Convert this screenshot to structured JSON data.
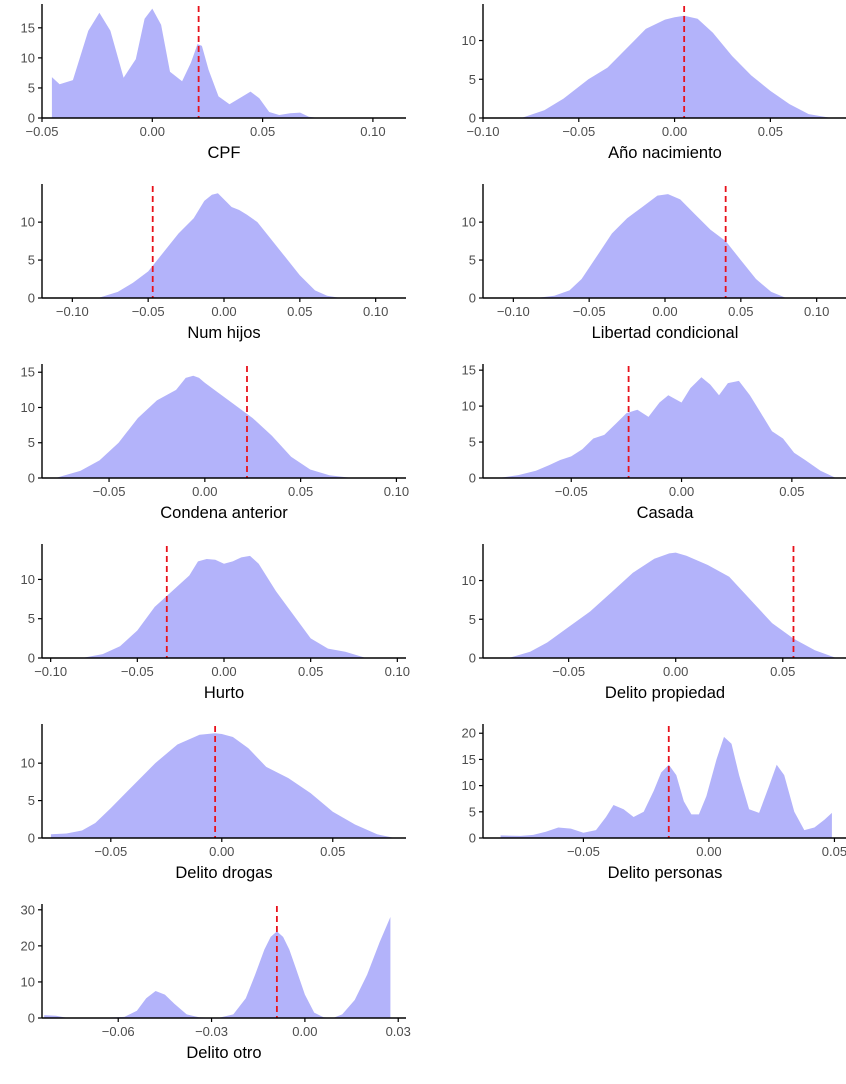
{
  "colors": {
    "density_fill": "#b3b3fa",
    "reference_line": "#e8121b",
    "axis": "#000000"
  },
  "chart_data": [
    {
      "type": "area",
      "title": "",
      "xlabel": "CPF",
      "ylabel": "",
      "grid": false,
      "xlim": [
        -0.05,
        0.115
      ],
      "ylim": [
        0,
        18.3
      ],
      "xticks": [
        "-0.05",
        "0.00",
        "0.05",
        "0.10"
      ],
      "yticks": [
        "0",
        "5",
        "10",
        "15"
      ],
      "reference_x": 0.021,
      "x": [
        -0.0455,
        -0.042,
        -0.036,
        -0.029,
        -0.024,
        -0.019,
        -0.013,
        -0.0075,
        -0.0035,
        0.0,
        0.004,
        0.008,
        0.0135,
        0.0175,
        0.0205,
        0.0225,
        0.0255,
        0.03,
        0.035,
        0.0405,
        0.0445,
        0.0485,
        0.053,
        0.0575,
        0.0625,
        0.067,
        0.071,
        0.0755
      ],
      "y": [
        6.8,
        5.6,
        6.3,
        14.5,
        17.5,
        14.5,
        6.7,
        9.8,
        16.5,
        18.2,
        15.5,
        7.7,
        6.1,
        9.2,
        12.3,
        12.0,
        8.0,
        3.6,
        2.3,
        3.5,
        4.4,
        3.3,
        1.0,
        0.5,
        0.8,
        0.9,
        0.2,
        0.0
      ]
    },
    {
      "type": "area",
      "title": "",
      "xlabel": "Año nacimiento",
      "ylabel": "",
      "grid": false,
      "xlim": [
        -0.1,
        0.09
      ],
      "ylim": [
        0,
        14.2
      ],
      "xticks": [
        "-0.10",
        "-0.05",
        "0.00",
        "0.05"
      ],
      "yticks": [
        "0",
        "5",
        "10"
      ],
      "reference_x": 0.005,
      "x": [
        -0.08,
        -0.068,
        -0.058,
        -0.045,
        -0.035,
        -0.025,
        -0.015,
        -0.005,
        0.0,
        0.005,
        0.012,
        0.02,
        0.03,
        0.04,
        0.05,
        0.06,
        0.07,
        0.082
      ],
      "y": [
        0,
        1,
        2.5,
        5,
        6.5,
        9,
        11.5,
        12.7,
        13.0,
        13.2,
        12.8,
        11,
        8,
        5.5,
        3.5,
        1.8,
        0.5,
        0
      ]
    },
    {
      "type": "area",
      "title": "",
      "xlabel": "Num hijos",
      "ylabel": "",
      "grid": false,
      "xlim": [
        -0.12,
        0.12
      ],
      "ylim": [
        0,
        14.5
      ],
      "xticks": [
        "-0.10",
        "-0.05",
        "0.00",
        "0.05",
        "0.10"
      ],
      "yticks": [
        "0",
        "5",
        "10"
      ],
      "reference_x": -0.047,
      "x": [
        -0.083,
        -0.07,
        -0.06,
        -0.05,
        -0.04,
        -0.03,
        -0.02,
        -0.013,
        -0.008,
        -0.004,
        0.0,
        0.005,
        0.01,
        0.015,
        0.022,
        0.03,
        0.04,
        0.05,
        0.06,
        0.068,
        0.077
      ],
      "y": [
        0,
        0.8,
        2.0,
        3.5,
        6.0,
        8.5,
        10.5,
        12.8,
        13.6,
        13.8,
        13.0,
        12.0,
        11.6,
        11.0,
        10.0,
        8.0,
        5.5,
        3.0,
        1.0,
        0.3,
        0
      ]
    },
    {
      "type": "area",
      "title": "",
      "xlabel": "Libertad condicional",
      "ylabel": "",
      "grid": false,
      "xlim": [
        -0.12,
        0.12
      ],
      "ylim": [
        0,
        14.5
      ],
      "xticks": [
        "-0.10",
        "-0.05",
        "0.00",
        "0.05",
        "0.10"
      ],
      "yticks": [
        "0",
        "5",
        "10"
      ],
      "reference_x": 0.04,
      "x": [
        -0.085,
        -0.073,
        -0.063,
        -0.055,
        -0.045,
        -0.035,
        -0.025,
        -0.015,
        -0.005,
        0.002,
        0.01,
        0.02,
        0.03,
        0.04,
        0.05,
        0.06,
        0.07,
        0.08
      ],
      "y": [
        0,
        0.3,
        1.0,
        2.5,
        5.5,
        8.5,
        10.5,
        12.0,
        13.5,
        13.7,
        13.0,
        11.0,
        9.0,
        7.5,
        5.0,
        2.5,
        0.8,
        0
      ]
    },
    {
      "type": "area",
      "title": "",
      "xlabel": "Condena anterior",
      "ylabel": "",
      "grid": false,
      "xlim": [
        -0.085,
        0.105
      ],
      "ylim": [
        0,
        15.6
      ],
      "xticks": [
        "-0.05",
        "0.00",
        "0.05",
        "0.10"
      ],
      "yticks": [
        "0",
        "5",
        "10",
        "15"
      ],
      "reference_x": 0.022,
      "x": [
        -0.078,
        -0.065,
        -0.055,
        -0.045,
        -0.035,
        -0.025,
        -0.015,
        -0.01,
        -0.006,
        -0.003,
        0.0,
        0.005,
        0.015,
        0.025,
        0.035,
        0.045,
        0.055,
        0.065,
        0.077
      ],
      "y": [
        0,
        1.0,
        2.5,
        5.0,
        8.5,
        11.0,
        12.5,
        14.2,
        14.5,
        14.2,
        13.5,
        12.5,
        10.5,
        8.5,
        6.0,
        3.0,
        1.2,
        0.4,
        0
      ]
    },
    {
      "type": "area",
      "title": "",
      "xlabel": "Casada",
      "ylabel": "",
      "grid": false,
      "xlim": [
        -0.09,
        0.075
      ],
      "ylim": [
        0,
        15.3
      ],
      "xticks": [
        "-0.05",
        "0.00",
        "0.05"
      ],
      "yticks": [
        "0",
        "5",
        "10",
        "15"
      ],
      "reference_x": -0.024,
      "x": [
        -0.083,
        -0.074,
        -0.066,
        -0.06,
        -0.055,
        -0.05,
        -0.045,
        -0.04,
        -0.035,
        -0.03,
        -0.025,
        -0.02,
        -0.015,
        -0.01,
        -0.006,
        -0.003,
        0.0,
        0.004,
        0.009,
        0.013,
        0.017,
        0.021,
        0.026,
        0.031,
        0.036,
        0.041,
        0.046,
        0.051,
        0.056,
        0.063,
        0.07
      ],
      "y": [
        0,
        0.4,
        1.0,
        1.8,
        2.5,
        3.0,
        4.0,
        5.5,
        6.0,
        7.5,
        9.0,
        9.5,
        8.5,
        10.5,
        11.5,
        11.0,
        10.5,
        12.5,
        14.0,
        13.0,
        11.5,
        13.2,
        13.5,
        11.5,
        9.0,
        6.5,
        5.5,
        3.5,
        2.5,
        1.0,
        0
      ]
    },
    {
      "type": "area",
      "title": "",
      "xlabel": "Hurto",
      "ylabel": "",
      "grid": false,
      "xlim": [
        -0.105,
        0.105
      ],
      "ylim": [
        0,
        14.0
      ],
      "xticks": [
        "-0.10",
        "-0.05",
        "0.00",
        "0.05",
        "0.10"
      ],
      "yticks": [
        "0",
        "5",
        "10"
      ],
      "reference_x": -0.033,
      "x": [
        -0.082,
        -0.07,
        -0.06,
        -0.05,
        -0.04,
        -0.03,
        -0.02,
        -0.015,
        -0.01,
        -0.005,
        0.0,
        0.005,
        0.01,
        0.015,
        0.02,
        0.03,
        0.04,
        0.05,
        0.06,
        0.07,
        0.082
      ],
      "y": [
        0,
        0.5,
        1.5,
        3.5,
        6.5,
        8.5,
        10.5,
        12.3,
        12.6,
        12.5,
        12.0,
        12.3,
        12.8,
        13.0,
        12.0,
        8.5,
        5.5,
        2.5,
        1.2,
        0.8,
        0
      ]
    },
    {
      "type": "area",
      "title": "",
      "xlabel": "Delito propiedad",
      "ylabel": "",
      "grid": false,
      "xlim": [
        -0.09,
        0.08
      ],
      "ylim": [
        0,
        14.2
      ],
      "xticks": [
        "-0.05",
        "0.00",
        "0.05"
      ],
      "yticks": [
        "0",
        "5",
        "10"
      ],
      "reference_x": 0.055,
      "x": [
        -0.078,
        -0.068,
        -0.06,
        -0.05,
        -0.04,
        -0.03,
        -0.02,
        -0.01,
        -0.003,
        0.0,
        0.005,
        0.015,
        0.025,
        0.035,
        0.045,
        0.055,
        0.065,
        0.075
      ],
      "y": [
        0,
        0.8,
        2.0,
        4.0,
        6.0,
        8.5,
        11.0,
        12.8,
        13.5,
        13.6,
        13.2,
        12.0,
        10.5,
        7.5,
        4.5,
        2.5,
        1.0,
        0
      ]
    },
    {
      "type": "area",
      "title": "",
      "xlabel": "Delito drogas",
      "ylabel": "",
      "grid": false,
      "xlim": [
        -0.081,
        0.083
      ],
      "ylim": [
        0,
        14.7
      ],
      "xticks": [
        "-0.05",
        "0.00",
        "0.05"
      ],
      "yticks": [
        "0",
        "5",
        "10"
      ],
      "reference_x": -0.003,
      "x": [
        -0.077,
        -0.07,
        -0.063,
        -0.057,
        -0.05,
        -0.04,
        -0.03,
        -0.02,
        -0.01,
        -0.003,
        0.0,
        0.005,
        0.012,
        0.02,
        0.03,
        0.04,
        0.05,
        0.06,
        0.07,
        0.078
      ],
      "y": [
        0.5,
        0.6,
        1.0,
        2.0,
        4.0,
        7.0,
        10.0,
        12.5,
        13.8,
        14.0,
        13.9,
        13.5,
        12.0,
        9.5,
        8.0,
        6.0,
        3.5,
        1.8,
        0.5,
        0
      ]
    },
    {
      "type": "area",
      "title": "",
      "xlabel": "Delito personas",
      "ylabel": "",
      "grid": false,
      "xlim": [
        -0.09,
        0.055
      ],
      "ylim": [
        0,
        21.0
      ],
      "xticks": [
        "-0.05",
        "0.00",
        "0.05"
      ],
      "yticks": [
        "0",
        "5",
        "10",
        "15",
        "20"
      ],
      "reference_x": -0.016,
      "x": [
        -0.083,
        -0.075,
        -0.07,
        -0.065,
        -0.06,
        -0.055,
        -0.05,
        -0.045,
        -0.041,
        -0.038,
        -0.034,
        -0.03,
        -0.026,
        -0.022,
        -0.019,
        -0.016,
        -0.013,
        -0.01,
        -0.007,
        -0.004,
        -0.001,
        0.003,
        0.006,
        0.009,
        0.012,
        0.016,
        0.02,
        0.024,
        0.027,
        0.03,
        0.034,
        0.038,
        0.042,
        0.046,
        0.049
      ],
      "y": [
        0.5,
        0.4,
        0.6,
        1.2,
        2.0,
        1.8,
        1.0,
        1.5,
        4.0,
        6.3,
        5.5,
        4.0,
        5.0,
        9.0,
        12.5,
        14.0,
        12.0,
        7.0,
        4.5,
        4.5,
        8.0,
        15.0,
        19.3,
        18.0,
        12.0,
        5.5,
        4.8,
        10.0,
        14.0,
        12.0,
        5.0,
        1.5,
        2.0,
        3.5,
        4.8
      ]
    },
    {
      "type": "area",
      "title": "",
      "xlabel": "Delito otro",
      "ylabel": "",
      "grid": false,
      "xlim": [
        -0.0845,
        0.0325
      ],
      "ylim": [
        0,
        30.5
      ],
      "xticks": [
        "-0.06",
        "-0.03",
        "0.00",
        "0.03"
      ],
      "yticks": [
        "0",
        "10",
        "20",
        "30"
      ],
      "reference_x": -0.009,
      "x": [
        -0.0838,
        -0.08,
        -0.076,
        -0.066,
        -0.058,
        -0.054,
        -0.051,
        -0.048,
        -0.045,
        -0.042,
        -0.038,
        -0.034,
        -0.028,
        -0.023,
        -0.019,
        -0.016,
        -0.013,
        -0.011,
        -0.009,
        -0.007,
        -0.005,
        -0.003,
        0.0,
        0.003,
        0.006,
        0.009,
        0.012,
        0.016,
        0.02,
        0.024,
        0.0275
      ],
      "y": [
        0.8,
        0.6,
        0.0,
        0.0,
        0.3,
        2.0,
        5.5,
        7.5,
        6.5,
        4.0,
        1.0,
        0.2,
        0.0,
        1.0,
        5.5,
        12.0,
        19.0,
        22.5,
        24.0,
        22.5,
        19.0,
        14.0,
        6.5,
        1.5,
        0.2,
        0.0,
        1.0,
        5.0,
        12.0,
        21.0,
        28.0
      ]
    }
  ]
}
